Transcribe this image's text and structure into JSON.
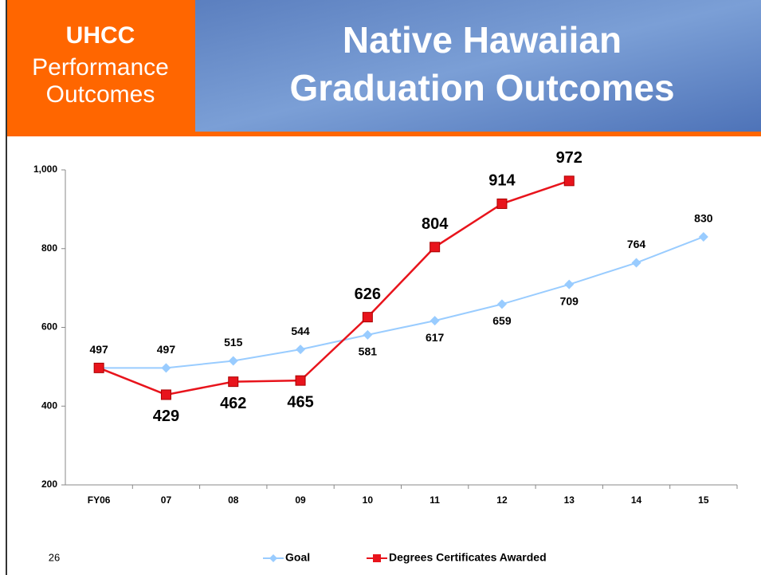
{
  "header": {
    "badge_title": "UHCC",
    "badge_lines": [
      "Performance",
      "Outcomes"
    ],
    "title_lines": [
      "Native Hawaiian",
      "Graduation Outcomes"
    ]
  },
  "page_number": "26",
  "chart_data": {
    "type": "line",
    "categories": [
      "FY06",
      "07",
      "08",
      "09",
      "10",
      "11",
      "12",
      "13",
      "14",
      "15"
    ],
    "series": [
      {
        "name": "Goal",
        "color": "#99ccff",
        "values": [
          497,
          497,
          515,
          544,
          581,
          617,
          659,
          709,
          764,
          830
        ]
      },
      {
        "name": "Degrees Certificates Awarded",
        "color": "#e8141c",
        "values": [
          497,
          429,
          462,
          465,
          626,
          804,
          914,
          972,
          null,
          null
        ]
      }
    ],
    "ylim": [
      200,
      1000
    ],
    "yticks": [
      200,
      400,
      600,
      800,
      {
        "value": 1000,
        "label": "1,000"
      }
    ],
    "legend": "bottom"
  }
}
